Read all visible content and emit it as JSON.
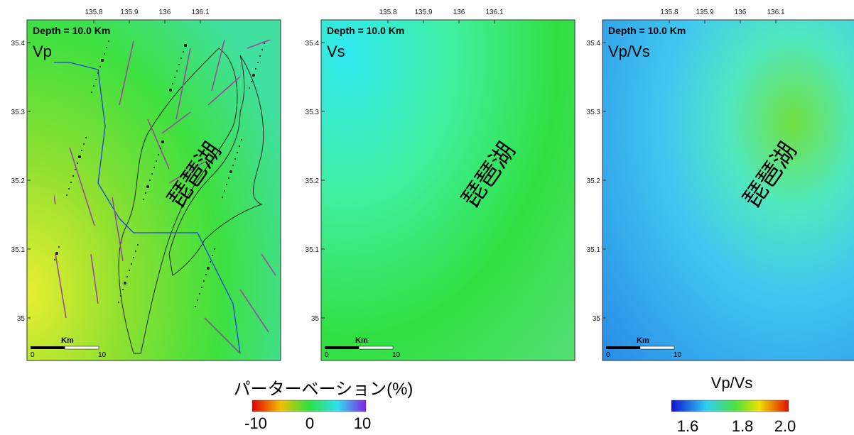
{
  "axes": {
    "lon_ticks": [
      135.8,
      135.9,
      136,
      136.1
    ],
    "lat_ticks": [
      35.4,
      35.3,
      35.2,
      35.1,
      35
    ]
  },
  "panels": [
    {
      "depth": "Depth = 10.0 Km",
      "title": "Vp",
      "lake": "琵琶湖",
      "scale": {
        "unit": "Km",
        "start": "0",
        "end": "10"
      }
    },
    {
      "depth": "Depth = 10.0 Km",
      "title": "Vs",
      "lake": "琵琶湖",
      "scale": {
        "unit": "Km",
        "start": "0",
        "end": "10"
      }
    },
    {
      "depth": "Depth = 10.0 Km",
      "title": "Vp/Vs",
      "lake": "琵琶湖",
      "scale": {
        "unit": "Km",
        "start": "0",
        "end": "10"
      }
    }
  ],
  "legends": [
    {
      "title": "パーターベーション(%)",
      "labels": [
        "-10",
        "0",
        "10"
      ]
    },
    {
      "title": "Vp/Vs",
      "labels": [
        "1.6",
        "1.8",
        "2.0"
      ]
    }
  ]
}
